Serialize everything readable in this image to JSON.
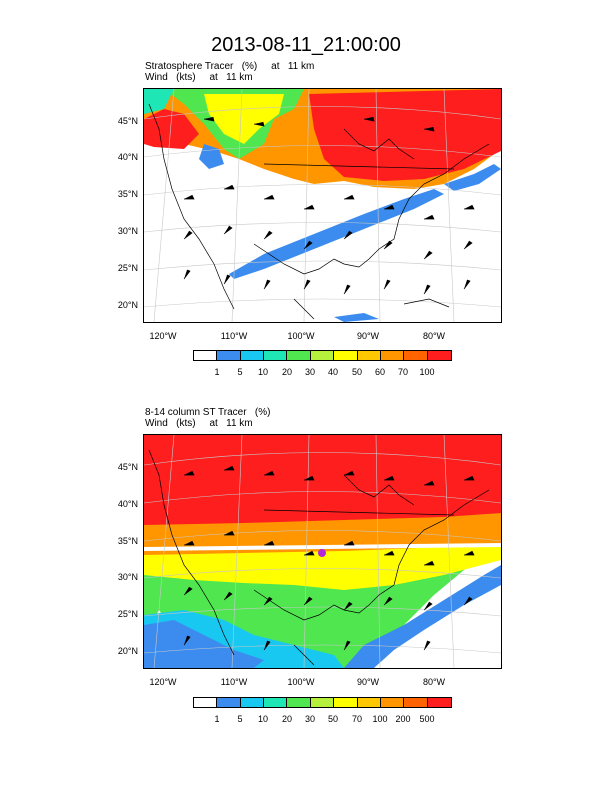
{
  "title": "2013-08-11_21:00:00",
  "panels": [
    {
      "line1": "Stratosphere Tracer   (%)     at   11 km",
      "line2": "Wind   (kts)     at   11 km",
      "lat_labels": [
        "45°N",
        "40°N",
        "35°N",
        "30°N",
        "25°N",
        "20°N"
      ],
      "lon_labels": [
        "120°W",
        "110°W",
        "100°W",
        "90°W",
        "80°W"
      ],
      "colorbar_ticks": [
        "1",
        "5",
        "10",
        "20",
        "30",
        "40",
        "50",
        "60",
        "70",
        "100"
      ]
    },
    {
      "line1": "8-14 column ST Tracer   (%)",
      "line2": "Wind   (kts)     at   11 km",
      "lat_labels": [
        "45°N",
        "40°N",
        "35°N",
        "30°N",
        "25°N",
        "20°N"
      ],
      "lon_labels": [
        "120°W",
        "110°W",
        "100°W",
        "90°W",
        "80°W"
      ],
      "colorbar_ticks": [
        "1",
        "5",
        "10",
        "20",
        "30",
        "50",
        "70",
        "100",
        "200",
        "500"
      ]
    }
  ],
  "colorbar_colors": [
    "#ffffff",
    "#3c8cf0",
    "#18c8f0",
    "#1ee6b4",
    "#50e650",
    "#b4f03c",
    "#ffff00",
    "#ffc800",
    "#ff9600",
    "#ff6400",
    "#ff1e1e"
  ],
  "colors": {
    "land_outline": "#000000",
    "grid": "#cccccc"
  }
}
